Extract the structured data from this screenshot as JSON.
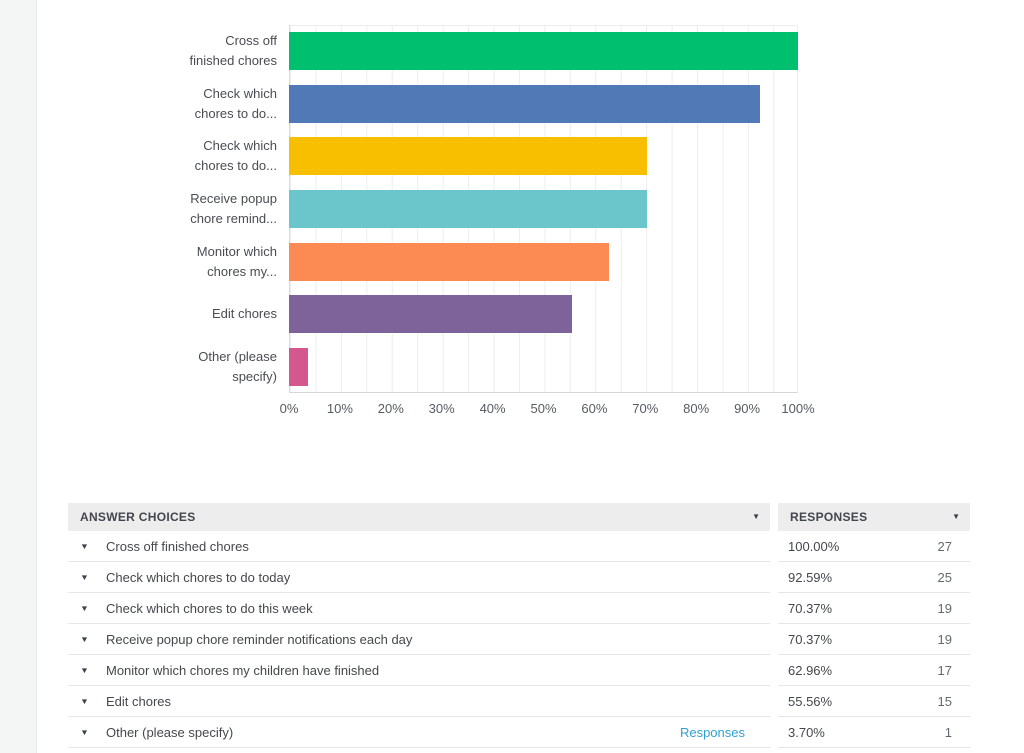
{
  "chart_data": {
    "type": "bar",
    "orientation": "horizontal",
    "title": "",
    "xlabel": "",
    "ylabel": "",
    "xlim": [
      0,
      100
    ],
    "grid": {
      "visible": true,
      "vertical_step_percent": 5
    },
    "x_tick_labels": [
      "0%",
      "10%",
      "20%",
      "30%",
      "40%",
      "50%",
      "60%",
      "70%",
      "80%",
      "90%",
      "100%"
    ],
    "bars": [
      {
        "category": "Cross off finished chores",
        "label_lines": [
          "Cross off",
          "finished chores"
        ],
        "value": 100.0,
        "color": "#00bf6f"
      },
      {
        "category": "Check which chores to do today",
        "label_lines": [
          "Check which",
          "chores to do..."
        ],
        "value": 92.59,
        "color": "#5079b5"
      },
      {
        "category": "Check which chores to do this week",
        "label_lines": [
          "Check which",
          "chores to do..."
        ],
        "value": 70.37,
        "color": "#f8bf00"
      },
      {
        "category": "Receive popup chore reminder notifications each day",
        "label_lines": [
          "Receive popup",
          "chore remind..."
        ],
        "value": 70.37,
        "color": "#6ac6cb"
      },
      {
        "category": "Monitor which chores my children have finished",
        "label_lines": [
          "Monitor which",
          "chores my..."
        ],
        "value": 62.96,
        "color": "#fb8a53"
      },
      {
        "category": "Edit chores",
        "label_lines": [
          "Edit chores"
        ],
        "value": 55.56,
        "color": "#7d6399"
      },
      {
        "category": "Other (please specify)",
        "label_lines": [
          "Other (please",
          "specify)"
        ],
        "value": 3.7,
        "color": "#d4588e"
      }
    ]
  },
  "table": {
    "header": {
      "answer_choices_label": "ANSWER CHOICES",
      "responses_label": "RESPONSES"
    },
    "rows": [
      {
        "label": "Cross off finished chores",
        "percent": "100.00%",
        "count": "27"
      },
      {
        "label": "Check which chores to do today",
        "percent": "92.59%",
        "count": "25"
      },
      {
        "label": "Check which chores to do this week",
        "percent": "70.37%",
        "count": "19"
      },
      {
        "label": "Receive popup chore reminder notifications each day",
        "percent": "70.37%",
        "count": "19"
      },
      {
        "label": "Monitor which chores my children have finished",
        "percent": "62.96%",
        "count": "17"
      },
      {
        "label": "Edit chores",
        "percent": "55.56%",
        "count": "15"
      },
      {
        "label": "Other (please specify)",
        "link_label": "Responses",
        "percent": "3.70%",
        "count": "1"
      }
    ]
  },
  "icons": {
    "caret_down": "▼"
  },
  "colors": {
    "link_blue": "#2fa0d1",
    "header_bg": "#ededee",
    "text_dark": "#44474c",
    "count_gray": "#636870",
    "sidebar_strip": "#f4f5f5"
  }
}
